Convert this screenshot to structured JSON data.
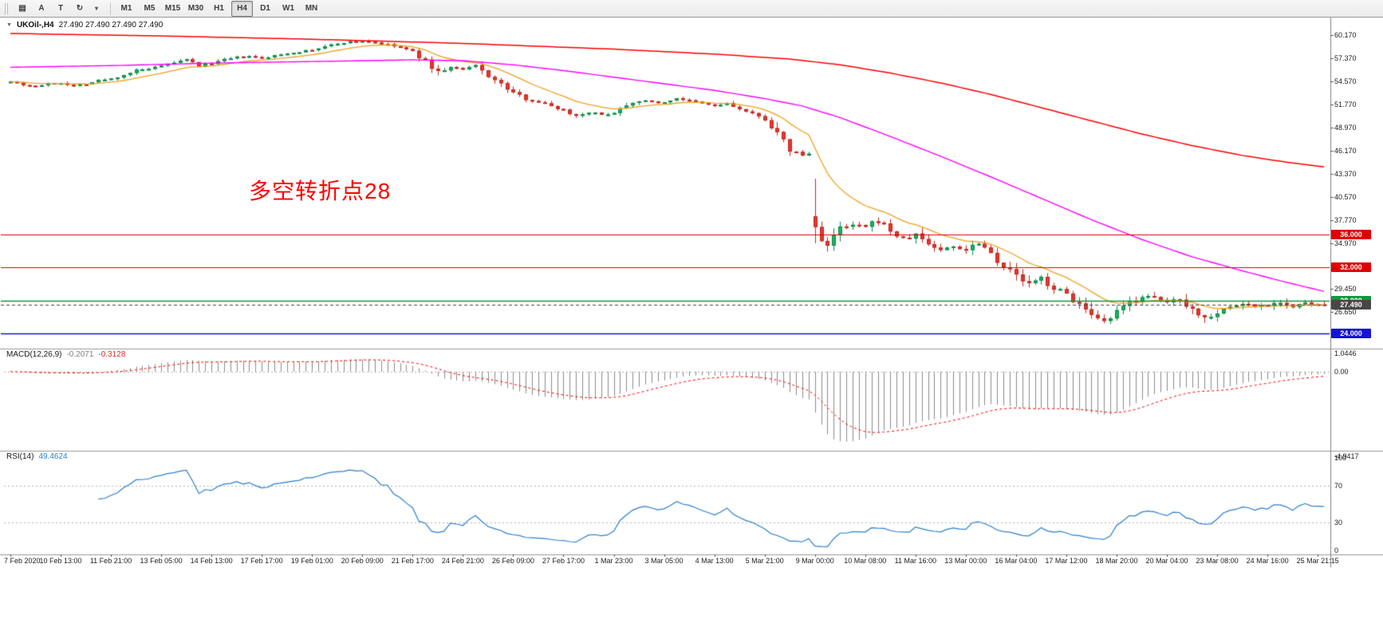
{
  "toolbar": {
    "left_buttons": [
      {
        "name": "hatch-icon",
        "glyph": "▤"
      },
      {
        "name": "text-a-icon",
        "glyph": "A"
      },
      {
        "name": "text-t-icon",
        "glyph": "T"
      },
      {
        "name": "cycle-icon",
        "glyph": "↻"
      },
      {
        "name": "dropdown-caret-icon",
        "glyph": "▾"
      }
    ],
    "timeframes": [
      "M1",
      "M5",
      "M15",
      "M30",
      "H1",
      "H4",
      "D1",
      "W1",
      "MN"
    ],
    "active_timeframe": "H4"
  },
  "chart": {
    "title": "UKOil-,H4",
    "ohlc": "27.490 27.490 27.490 27.490",
    "annotation": {
      "text": "多空转折点28",
      "color": "#ff0000"
    }
  },
  "chart_data": {
    "type": "candlestick+indicators",
    "symbol": "UKOil-",
    "timeframe": "H4",
    "bars": 210,
    "label_every": 8,
    "time_labels": [
      "7 Feb 2020",
      "10 Feb 13:00",
      "11 Feb 21:00",
      "13 Feb 05:00",
      "14 Feb 13:00",
      "17 Feb 17:00",
      "19 Feb 01:00",
      "20 Feb 09:00",
      "21 Feb 17:00",
      "24 Feb 21:00",
      "26 Feb 09:00",
      "27 Feb 17:00",
      "1 Mar 23:00",
      "3 Mar 05:00",
      "4 Mar 13:00",
      "5 Mar 21:00",
      "9 Mar 00:00",
      "10 Mar 08:00",
      "11 Mar 16:00",
      "13 Mar 00:00",
      "16 Mar 04:00",
      "17 Mar 12:00",
      "18 Mar 20:00",
      "20 Mar 04:00",
      "23 Mar 08:00",
      "24 Mar 16:00",
      "25 Mar 21:15"
    ],
    "price_range": [
      22.55,
      61.85
    ],
    "price_axis_labels": [
      60.17,
      57.37,
      54.57,
      51.77,
      48.97,
      46.17,
      43.37,
      40.57,
      37.77,
      34.97,
      29.45,
      26.65
    ],
    "close_anchors": [
      [
        0,
        54.6
      ],
      [
        2,
        54.2
      ],
      [
        4,
        54.0
      ],
      [
        6,
        54.3
      ],
      [
        8,
        54.4
      ],
      [
        10,
        54.1
      ],
      [
        12,
        54.3
      ],
      [
        14,
        54.7
      ],
      [
        16,
        54.9
      ],
      [
        18,
        55.4
      ],
      [
        20,
        55.9
      ],
      [
        22,
        56.1
      ],
      [
        24,
        56.4
      ],
      [
        26,
        56.9
      ],
      [
        28,
        57.2
      ],
      [
        30,
        56.5
      ],
      [
        32,
        56.8
      ],
      [
        34,
        57.2
      ],
      [
        36,
        57.5
      ],
      [
        38,
        57.6
      ],
      [
        40,
        57.4
      ],
      [
        42,
        57.7
      ],
      [
        44,
        58.0
      ],
      [
        46,
        58.2
      ],
      [
        48,
        58.4
      ],
      [
        50,
        58.8
      ],
      [
        52,
        59.2
      ],
      [
        54,
        59.4
      ],
      [
        56,
        59.5
      ],
      [
        58,
        59.3
      ],
      [
        60,
        59.0
      ],
      [
        62,
        58.7
      ],
      [
        64,
        58.2
      ],
      [
        66,
        57.0
      ],
      [
        68,
        55.7
      ],
      [
        70,
        56.3
      ],
      [
        72,
        56.0
      ],
      [
        74,
        56.5
      ],
      [
        76,
        55.3
      ],
      [
        78,
        54.2
      ],
      [
        80,
        53.2
      ],
      [
        82,
        52.5
      ],
      [
        84,
        52.1
      ],
      [
        86,
        51.6
      ],
      [
        88,
        51.1
      ],
      [
        90,
        50.4
      ],
      [
        92,
        50.9
      ],
      [
        94,
        50.5
      ],
      [
        96,
        50.8
      ],
      [
        98,
        51.8
      ],
      [
        100,
        52.3
      ],
      [
        102,
        52.1
      ],
      [
        104,
        52.0
      ],
      [
        106,
        52.6
      ],
      [
        108,
        52.2
      ],
      [
        110,
        51.9
      ],
      [
        112,
        51.6
      ],
      [
        114,
        51.9
      ],
      [
        116,
        51.2
      ],
      [
        118,
        50.6
      ],
      [
        120,
        50.0
      ],
      [
        122,
        48.2
      ],
      [
        124,
        46.3
      ],
      [
        126,
        45.6
      ],
      [
        127,
        45.8
      ],
      [
        128,
        36.6
      ],
      [
        130,
        34.6
      ],
      [
        132,
        36.7
      ],
      [
        134,
        37.1
      ],
      [
        136,
        36.9
      ],
      [
        138,
        37.7
      ],
      [
        140,
        36.5
      ],
      [
        142,
        35.3
      ],
      [
        144,
        36.0
      ],
      [
        146,
        34.9
      ],
      [
        148,
        34.1
      ],
      [
        150,
        34.6
      ],
      [
        152,
        34.2
      ],
      [
        154,
        35.2
      ],
      [
        156,
        33.8
      ],
      [
        158,
        32.2
      ],
      [
        160,
        31.0
      ],
      [
        162,
        29.9
      ],
      [
        164,
        30.7
      ],
      [
        166,
        29.5
      ],
      [
        168,
        28.8
      ],
      [
        170,
        27.5
      ],
      [
        172,
        25.9
      ],
      [
        174,
        25.3
      ],
      [
        176,
        26.5
      ],
      [
        178,
        27.8
      ],
      [
        180,
        28.6
      ],
      [
        182,
        28.2
      ],
      [
        184,
        27.8
      ],
      [
        186,
        28.3
      ],
      [
        188,
        26.9
      ],
      [
        190,
        25.9
      ],
      [
        192,
        26.6
      ],
      [
        194,
        27.2
      ],
      [
        196,
        27.6
      ],
      [
        198,
        27.3
      ],
      [
        200,
        27.5
      ],
      [
        202,
        27.9
      ],
      [
        204,
        27.2
      ],
      [
        206,
        27.6
      ],
      [
        208,
        27.45
      ],
      [
        209,
        27.49
      ]
    ],
    "gap": {
      "index": 128,
      "open": 38.2
    },
    "last_close": 27.49,
    "ma_fast_period": 13,
    "magenta_anchors": [
      [
        0,
        56.3
      ],
      [
        16,
        56.5
      ],
      [
        32,
        56.8
      ],
      [
        48,
        57.0
      ],
      [
        64,
        57.2
      ],
      [
        72,
        57.1
      ],
      [
        80,
        56.6
      ],
      [
        88,
        55.9
      ],
      [
        96,
        55.1
      ],
      [
        104,
        54.3
      ],
      [
        112,
        53.5
      ],
      [
        120,
        52.5
      ],
      [
        126,
        51.6
      ],
      [
        132,
        50.2
      ],
      [
        140,
        47.9
      ],
      [
        148,
        45.5
      ],
      [
        156,
        43.0
      ],
      [
        164,
        40.4
      ],
      [
        172,
        37.8
      ],
      [
        180,
        35.4
      ],
      [
        188,
        33.3
      ],
      [
        196,
        31.6
      ],
      [
        202,
        30.4
      ],
      [
        209,
        29.1
      ]
    ],
    "red_anchors": [
      [
        0,
        60.4
      ],
      [
        24,
        60.1
      ],
      [
        48,
        59.7
      ],
      [
        72,
        59.2
      ],
      [
        96,
        58.5
      ],
      [
        112,
        57.9
      ],
      [
        124,
        57.3
      ],
      [
        132,
        56.6
      ],
      [
        140,
        55.6
      ],
      [
        148,
        54.4
      ],
      [
        156,
        53.0
      ],
      [
        164,
        51.4
      ],
      [
        172,
        49.8
      ],
      [
        180,
        48.2
      ],
      [
        188,
        46.8
      ],
      [
        196,
        45.6
      ],
      [
        202,
        44.9
      ],
      [
        209,
        44.2
      ]
    ],
    "levels": [
      {
        "value": 36.0,
        "label": "36.000",
        "color": "#e00000",
        "line": "solid"
      },
      {
        "value": 32.0,
        "label": "32.000",
        "color": "#e00000",
        "line": "solid"
      },
      {
        "value": 28.0,
        "label": "28.000",
        "color": "#089b3e",
        "line": "solid"
      },
      {
        "value": 27.49,
        "label": "27.490",
        "color": "#474747",
        "line": "dashed"
      },
      {
        "value": 24.0,
        "label": "24.000",
        "color": "#1414d2",
        "line": "solid"
      }
    ],
    "macd": {
      "title": "MACD(12,26,9)",
      "values": [
        "-0.2071",
        "-0.3128"
      ],
      "fast": 12,
      "slow": 26,
      "signal": 9,
      "axis_labels": [
        {
          "v": 1.0446,
          "t": "1.0446"
        },
        {
          "v": 0,
          "t": "0.00"
        },
        {
          "v": -4.9417,
          "t": "-4.9417"
        }
      ]
    },
    "rsi": {
      "title": "RSI(14)",
      "value_text": "49.4624",
      "period": 14,
      "levels": [
        70,
        30
      ],
      "axis_labels": [
        {
          "v": 100,
          "t": "100"
        },
        {
          "v": 70,
          "t": "70"
        },
        {
          "v": 30,
          "t": "30"
        },
        {
          "v": 0,
          "t": "0"
        }
      ]
    },
    "colors": {
      "up": "#19b25f",
      "up_border": "#0c8a46",
      "down": "#ea352b",
      "down_border": "#bf271f",
      "ma_fast": "#f0a01e",
      "ma_mid": "#ff00ff",
      "ma_slow": "#ff0000",
      "macd_hist": "#8c8c8c",
      "macd_signal": "#ff0000",
      "rsi_line": "#2a7fce",
      "axis_border": "#808080",
      "separator": "#9a9a9a"
    }
  }
}
